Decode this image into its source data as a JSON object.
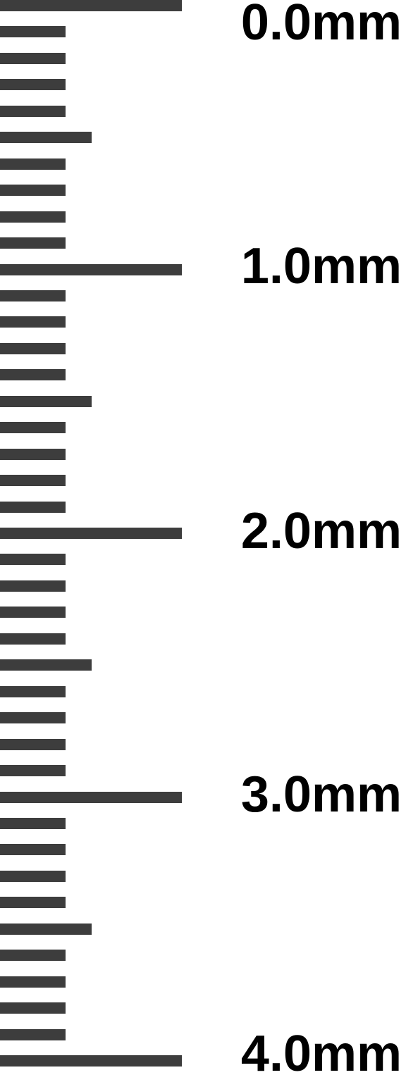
{
  "scale": {
    "unit": "mm",
    "min": 0.0,
    "max": 4.0,
    "major_step": 1.0,
    "half_step": 0.5,
    "minor_step": 0.1,
    "tick_color": "#3d3d3d",
    "label_color": "#000000"
  },
  "labels": [
    "0.0mm",
    "1.0mm",
    "2.0mm",
    "3.0mm",
    "4.0mm"
  ]
}
